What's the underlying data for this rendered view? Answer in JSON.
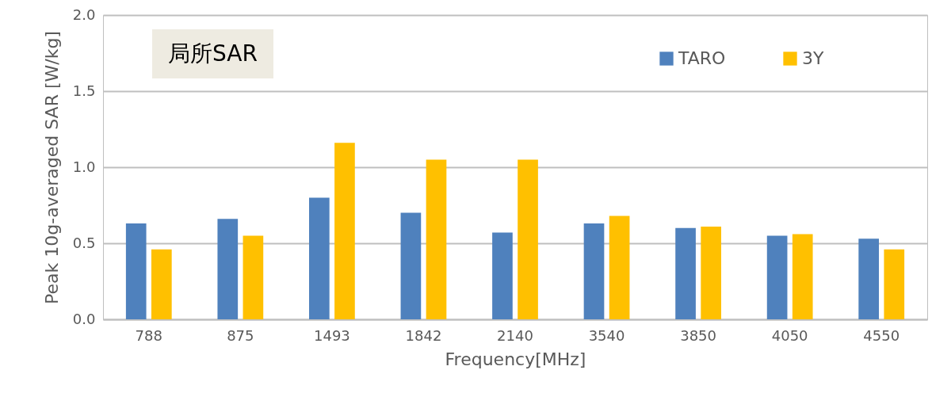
{
  "chart_data": {
    "type": "bar",
    "xlabel": "Frequency[MHz]",
    "ylabel": "Peak 10g-averaged SAR [W/kg]",
    "categories": [
      "788",
      "875",
      "1493",
      "1842",
      "2140",
      "3540",
      "3850",
      "4050",
      "4550"
    ],
    "series": [
      {
        "name": "TARO",
        "color": "#4f81bd",
        "values": [
          0.63,
          0.66,
          0.8,
          0.7,
          0.57,
          0.63,
          0.6,
          0.55,
          0.53
        ]
      },
      {
        "name": "3Y",
        "color": "#ffc000",
        "values": [
          0.46,
          0.55,
          1.16,
          1.05,
          1.05,
          0.68,
          0.61,
          0.56,
          0.46
        ]
      }
    ],
    "ylim": [
      0,
      2.0
    ],
    "yticks": [
      {
        "value": 0,
        "label": "0.0"
      },
      {
        "value": 0.5,
        "label": "0.5"
      },
      {
        "value": 1.0,
        "label": "1.0"
      },
      {
        "value": 1.5,
        "label": "1.5"
      },
      {
        "value": 2.0,
        "label": "2.0"
      }
    ],
    "grid": "y",
    "legend": "top right",
    "annotations": [
      "局所SAR"
    ]
  }
}
